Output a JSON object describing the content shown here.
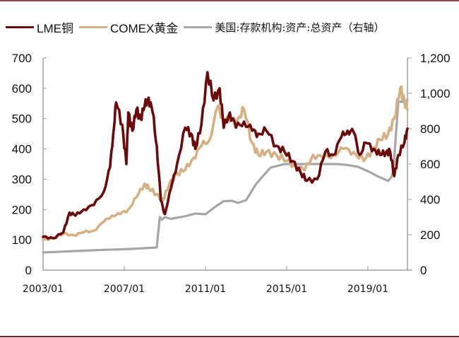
{
  "chart_data": {
    "type": "line",
    "title": "",
    "xlabel": "",
    "ylabel": "",
    "ylabel_right": "",
    "x_ticks": [
      "2003/01",
      "2007/01",
      "2011/01",
      "2015/01",
      "2019/01"
    ],
    "y_left_ticks": [
      "0",
      "100",
      "200",
      "300",
      "400",
      "500",
      "600",
      "700"
    ],
    "y_right_ticks": [
      "0",
      "200",
      "400",
      "600",
      "800",
      "1,000",
      "1,200"
    ],
    "ylim_left": [
      0,
      700
    ],
    "ylim_right": [
      0,
      1200
    ],
    "xlim": [
      "2003/01",
      "2020/12"
    ],
    "grid": false,
    "legend_position": "top",
    "series": [
      {
        "name": "LME铜",
        "axis": "left",
        "color": "#6b0a0a",
        "x": [
          2003.0,
          2003.5,
          2004.0,
          2004.3,
          2004.6,
          2005.0,
          2005.5,
          2006.0,
          2006.3,
          2006.45,
          2006.6,
          2006.9,
          2007.1,
          2007.2,
          2007.4,
          2007.6,
          2007.8,
          2008.0,
          2008.2,
          2008.4,
          2008.6,
          2008.8,
          2009.0,
          2009.3,
          2009.6,
          2010.0,
          2010.3,
          2010.5,
          2010.8,
          2011.1,
          2011.4,
          2011.7,
          2011.9,
          2012.2,
          2012.5,
          2012.9,
          2013.3,
          2013.6,
          2014.0,
          2014.5,
          2014.9,
          2015.3,
          2015.7,
          2016.0,
          2016.5,
          2016.9,
          2017.3,
          2017.7,
          2018.0,
          2018.3,
          2018.6,
          2018.9,
          2019.3,
          2019.6,
          2019.9,
          2020.1,
          2020.3,
          2020.5,
          2020.8,
          2020.95
        ],
        "values": [
          110,
          105,
          125,
          190,
          180,
          200,
          215,
          260,
          340,
          445,
          553,
          480,
          350,
          520,
          460,
          530,
          500,
          540,
          569,
          520,
          410,
          230,
          185,
          270,
          350,
          470,
          450,
          400,
          480,
          653,
          560,
          600,
          470,
          520,
          470,
          490,
          460,
          450,
          460,
          410,
          390,
          360,
          320,
          295,
          300,
          390,
          380,
          440,
          460,
          455,
          380,
          420,
          400,
          380,
          390,
          390,
          310,
          380,
          420,
          467
        ]
      },
      {
        "name": "COMEX黄金",
        "axis": "left",
        "color": "#d4b083",
        "x": [
          2003.0,
          2003.5,
          2004.0,
          2004.5,
          2005.0,
          2005.5,
          2006.0,
          2006.4,
          2006.8,
          2007.2,
          2007.6,
          2008.0,
          2008.2,
          2008.6,
          2008.9,
          2009.2,
          2009.6,
          2010.0,
          2010.4,
          2010.8,
          2011.2,
          2011.6,
          2011.8,
          2012.2,
          2012.6,
          2012.9,
          2013.3,
          2013.6,
          2014.0,
          2014.5,
          2015.0,
          2015.5,
          2015.9,
          2016.3,
          2016.8,
          2017.3,
          2017.8,
          2018.3,
          2018.8,
          2019.2,
          2019.6,
          2020.0,
          2020.3,
          2020.6,
          2020.8,
          2020.95
        ],
        "values": [
          100,
          105,
          120,
          115,
          125,
          130,
          160,
          180,
          185,
          200,
          240,
          285,
          270,
          250,
          230,
          280,
          320,
          330,
          370,
          410,
          430,
          540,
          510,
          490,
          500,
          530,
          420,
          380,
          390,
          380,
          360,
          340,
          330,
          380,
          370,
          380,
          400,
          390,
          360,
          395,
          430,
          450,
          500,
          600,
          560,
          530
        ]
      },
      {
        "name": "美国:存款机构:资产:总资产（右轴）",
        "axis": "right",
        "color": "#a6a6a6",
        "x": [
          2003.0,
          2004.0,
          2005.0,
          2006.0,
          2007.0,
          2008.0,
          2008.6,
          2008.75,
          2008.85,
          2009.0,
          2009.3,
          2010.0,
          2010.5,
          2011.0,
          2011.5,
          2011.9,
          2012.3,
          2012.6,
          2013.0,
          2013.5,
          2014.2,
          2014.9,
          2015.5,
          2016.5,
          2017.5,
          2018.0,
          2018.5,
          2019.0,
          2019.5,
          2020.0,
          2020.15,
          2020.25,
          2020.5,
          2020.8,
          2020.95
        ],
        "values": [
          100,
          105,
          110,
          115,
          118,
          124,
          128,
          300,
          285,
          300,
          290,
          305,
          320,
          316,
          360,
          390,
          392,
          380,
          396,
          488,
          580,
          600,
          600,
          600,
          600,
          595,
          585,
          560,
          530,
          505,
          525,
          560,
          955,
          950,
          965
        ]
      }
    ]
  },
  "legend": {
    "items": [
      {
        "label": "LME铜",
        "color": "#6b0a0a"
      },
      {
        "label": "COMEX黄金",
        "color": "#d4b083"
      },
      {
        "label": "美国:存款机构:资产:总资产（右轴）",
        "color": "#a6a6a6"
      }
    ]
  },
  "axes": {
    "left": [
      "0",
      "100",
      "200",
      "300",
      "400",
      "500",
      "600",
      "700"
    ],
    "right": [
      "0",
      "200",
      "400",
      "600",
      "800",
      "1,000",
      "1,200"
    ],
    "x": [
      "2003/01",
      "2007/01",
      "2011/01",
      "2015/01",
      "2019/01"
    ]
  }
}
